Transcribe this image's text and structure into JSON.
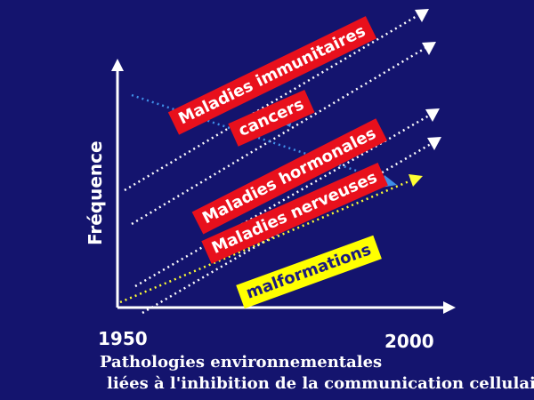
{
  "axis": {
    "y_label": "Fréquence",
    "x_start": "1950",
    "x_end": "2000"
  },
  "labels": {
    "immunitaires": "Maladies immunitaires",
    "cancers": "cancers",
    "hormonales": "Maladies hormonales",
    "nerveuses": "Maladies nerveuses",
    "malformations": "malformations"
  },
  "caption": {
    "line1": "Pathologies environnementales",
    "line2": "liées à l'inhibition de la communication cellulaire"
  },
  "colors": {
    "background": "#14146e",
    "label_red": "#e8101c",
    "label_yellow": "#ffff00",
    "arrow_white": "#ffffff",
    "arrow_blue": "#3f8fe8",
    "arrow_yellow": "#ffff33"
  }
}
